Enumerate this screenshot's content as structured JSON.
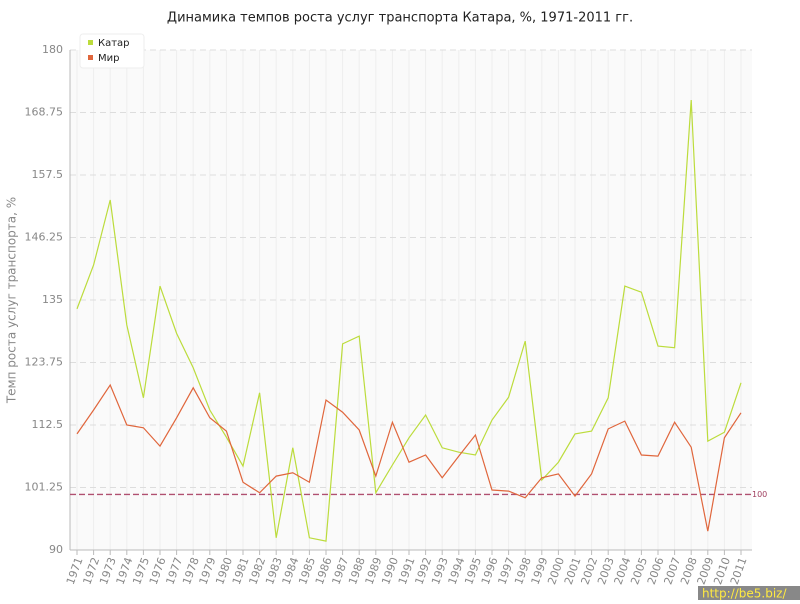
{
  "chart_data": {
    "type": "line",
    "title": "Динамика темпов роста услуг транспорта Катара, %, 1971-2011 гг.",
    "y_label": "Темп роста услуг транспорта, %",
    "categories": [
      "1971",
      "1972",
      "1973",
      "1974",
      "1975",
      "1976",
      "1977",
      "1978",
      "1979",
      "1980",
      "1981",
      "1982",
      "1983",
      "1984",
      "1985",
      "1986",
      "1987",
      "1988",
      "1989",
      "1990",
      "1991",
      "1992",
      "1993",
      "1994",
      "1995",
      "1996",
      "1997",
      "1998",
      "1999",
      "2000",
      "2001",
      "2002",
      "2003",
      "2004",
      "2005",
      "2006",
      "2007",
      "2008",
      "2009",
      "2010",
      "2011"
    ],
    "series": [
      {
        "name": "Катар",
        "color": "#bcdc3c",
        "values": [
          133.4,
          141.3,
          153,
          130.5,
          117.4,
          137.5,
          129,
          122.8,
          115.2,
          110.3,
          105.1,
          118.3,
          92.2,
          108.4,
          92.2,
          91.6,
          127.1,
          128.5,
          100.3,
          105.3,
          110.2,
          114.3,
          108.4,
          107.6,
          107.1,
          113.4,
          117.5,
          127.6,
          102.6,
          105.8,
          110.9,
          111.4,
          117.4,
          137.5,
          136.4,
          126.7,
          126.4,
          171,
          109.6,
          111.2,
          120.1
        ]
      },
      {
        "name": "Мир",
        "color": "#e0663c",
        "values": [
          110.9,
          115.2,
          119.7,
          112.5,
          112,
          108.7,
          113.8,
          119.2,
          113.8,
          111.4,
          102.2,
          100.3,
          103.3,
          103.9,
          102.2,
          117,
          114.8,
          111.6,
          103.3,
          113,
          105.8,
          107.1,
          103,
          106.9,
          110.7,
          100.8,
          100.6,
          99.4,
          103,
          103.7,
          99.7,
          103.7,
          111.8,
          113.2,
          107.1,
          106.9,
          113,
          108.5,
          93.4,
          110.2,
          114.7
        ]
      }
    ],
    "ylim": [
      90,
      180
    ],
    "yticks": [
      90,
      101.25,
      112.5,
      123.75,
      135,
      146.25,
      157.5,
      168.75,
      180
    ],
    "reference_line": 100,
    "grid": true,
    "legend": "top-left",
    "watermark": "http://be5.biz/"
  }
}
